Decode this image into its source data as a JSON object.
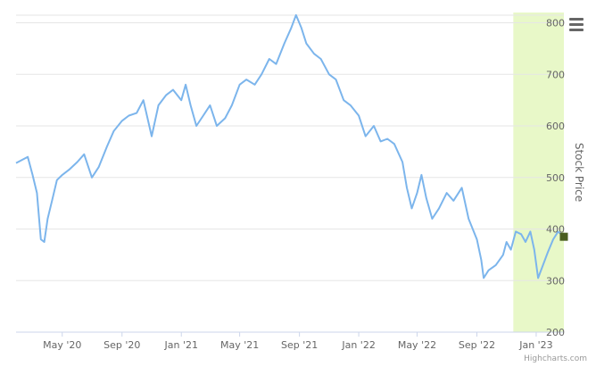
{
  "chart_data": {
    "type": "line",
    "xlabel": "",
    "ylabel": "Stock Price",
    "ylim": [
      200,
      820
    ],
    "y_ticks": [
      200,
      300,
      400,
      500,
      600,
      700,
      800
    ],
    "x_range": [
      "2020-01-27",
      "2023-02-27"
    ],
    "x_ticks": [
      {
        "date": "2020-05-01",
        "label": "May '20"
      },
      {
        "date": "2020-09-01",
        "label": "Sep '20"
      },
      {
        "date": "2021-01-01",
        "label": "Jan '21"
      },
      {
        "date": "2021-05-01",
        "label": "May '21"
      },
      {
        "date": "2021-09-01",
        "label": "Sep '21"
      },
      {
        "date": "2022-01-01",
        "label": "Jan '22"
      },
      {
        "date": "2022-05-01",
        "label": "May '22"
      },
      {
        "date": "2022-09-01",
        "label": "Sep '22"
      },
      {
        "date": "2023-01-01",
        "label": "Jan '23"
      }
    ],
    "grid": true,
    "legend": "none",
    "highlight_band": {
      "from": "2022-11-15",
      "to": "2023-02-27",
      "color": "#e8f8c8"
    },
    "series": [
      {
        "color": "#7cb5ec",
        "points": [
          [
            "2020-01-27",
            528
          ],
          [
            "2020-02-10",
            535
          ],
          [
            "2020-02-20",
            540
          ],
          [
            "2020-03-01",
            505
          ],
          [
            "2020-03-10",
            470
          ],
          [
            "2020-03-18",
            380
          ],
          [
            "2020-03-25",
            375
          ],
          [
            "2020-04-01",
            420
          ],
          [
            "2020-04-10",
            455
          ],
          [
            "2020-04-20",
            495
          ],
          [
            "2020-05-01",
            505
          ],
          [
            "2020-05-15",
            515
          ],
          [
            "2020-06-01",
            530
          ],
          [
            "2020-06-15",
            545
          ],
          [
            "2020-07-01",
            500
          ],
          [
            "2020-07-15",
            520
          ],
          [
            "2020-08-01",
            560
          ],
          [
            "2020-08-15",
            590
          ],
          [
            "2020-09-01",
            610
          ],
          [
            "2020-09-15",
            620
          ],
          [
            "2020-10-01",
            625
          ],
          [
            "2020-10-15",
            650
          ],
          [
            "2020-11-01",
            580
          ],
          [
            "2020-11-15",
            640
          ],
          [
            "2020-12-01",
            660
          ],
          [
            "2020-12-15",
            670
          ],
          [
            "2021-01-01",
            650
          ],
          [
            "2021-01-10",
            680
          ],
          [
            "2021-01-20",
            640
          ],
          [
            "2021-02-01",
            600
          ],
          [
            "2021-02-15",
            620
          ],
          [
            "2021-03-01",
            640
          ],
          [
            "2021-03-15",
            600
          ],
          [
            "2021-04-01",
            615
          ],
          [
            "2021-04-15",
            640
          ],
          [
            "2021-05-01",
            680
          ],
          [
            "2021-05-15",
            690
          ],
          [
            "2021-06-01",
            680
          ],
          [
            "2021-06-15",
            700
          ],
          [
            "2021-07-01",
            730
          ],
          [
            "2021-07-15",
            720
          ],
          [
            "2021-08-01",
            760
          ],
          [
            "2021-08-15",
            790
          ],
          [
            "2021-08-25",
            815
          ],
          [
            "2021-09-05",
            790
          ],
          [
            "2021-09-15",
            760
          ],
          [
            "2021-10-01",
            740
          ],
          [
            "2021-10-15",
            730
          ],
          [
            "2021-11-01",
            700
          ],
          [
            "2021-11-15",
            690
          ],
          [
            "2021-12-01",
            650
          ],
          [
            "2021-12-15",
            640
          ],
          [
            "2022-01-01",
            620
          ],
          [
            "2022-01-15",
            580
          ],
          [
            "2022-02-01",
            600
          ],
          [
            "2022-02-15",
            570
          ],
          [
            "2022-03-01",
            575
          ],
          [
            "2022-03-15",
            565
          ],
          [
            "2022-04-01",
            530
          ],
          [
            "2022-04-10",
            480
          ],
          [
            "2022-04-20",
            440
          ],
          [
            "2022-05-01",
            470
          ],
          [
            "2022-05-10",
            505
          ],
          [
            "2022-05-20",
            460
          ],
          [
            "2022-06-01",
            420
          ],
          [
            "2022-06-15",
            440
          ],
          [
            "2022-07-01",
            470
          ],
          [
            "2022-07-15",
            455
          ],
          [
            "2022-08-01",
            480
          ],
          [
            "2022-08-15",
            420
          ],
          [
            "2022-09-01",
            380
          ],
          [
            "2022-09-10",
            340
          ],
          [
            "2022-09-15",
            305
          ],
          [
            "2022-09-25",
            320
          ],
          [
            "2022-10-10",
            330
          ],
          [
            "2022-10-25",
            350
          ],
          [
            "2022-11-01",
            375
          ],
          [
            "2022-11-10",
            360
          ],
          [
            "2022-11-20",
            395
          ],
          [
            "2022-12-01",
            390
          ],
          [
            "2022-12-10",
            375
          ],
          [
            "2022-12-20",
            395
          ],
          [
            "2022-12-28",
            360
          ],
          [
            "2023-01-05",
            305
          ],
          [
            "2023-01-15",
            330
          ],
          [
            "2023-01-25",
            355
          ],
          [
            "2023-02-05",
            380
          ],
          [
            "2023-02-15",
            395
          ],
          [
            "2023-02-27",
            385
          ]
        ]
      }
    ],
    "last_marker": {
      "date": "2023-02-27",
      "value": 385,
      "color": "#4b5e1f"
    }
  },
  "icons": {
    "menu": "hamburger-menu-icon"
  },
  "credits": "Highcharts.com"
}
